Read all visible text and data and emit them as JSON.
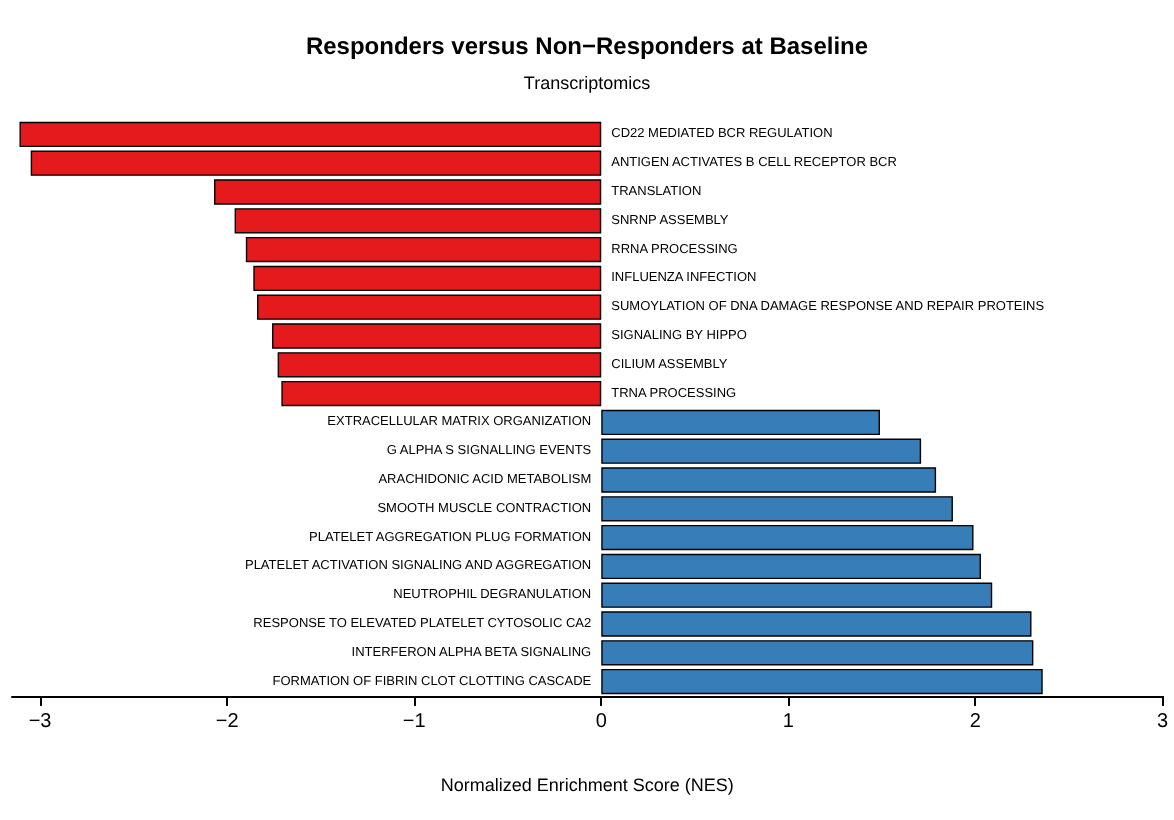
{
  "chart_data": {
    "type": "bar",
    "orientation": "horizontal",
    "title": "Responders versus Non−Responders at Baseline",
    "subtitle": "Transcriptomics",
    "xlabel": "Normalized Enrichment Score (NES)",
    "categories": [
      "CD22 MEDIATED BCR REGULATION",
      "ANTIGEN ACTIVATES B CELL RECEPTOR BCR",
      "TRANSLATION",
      "SNRNP ASSEMBLY",
      "RRNA PROCESSING",
      "INFLUENZA INFECTION",
      "SUMOYLATION OF DNA DAMAGE RESPONSE AND REPAIR PROTEINS",
      "SIGNALING BY HIPPO",
      "CILIUM ASSEMBLY",
      "TRNA PROCESSING",
      "EXTRACELLULAR MATRIX ORGANIZATION",
      "G ALPHA S SIGNALLING EVENTS",
      "ARACHIDONIC ACID METABOLISM",
      "SMOOTH MUSCLE CONTRACTION",
      "PLATELET AGGREGATION PLUG FORMATION",
      "PLATELET ACTIVATION SIGNALING AND AGGREGATION",
      "NEUTROPHIL DEGRANULATION",
      "RESPONSE TO ELEVATED PLATELET CYTOSOLIC CA2",
      "INTERFERON ALPHA BETA SIGNALING",
      "FORMATION OF FIBRIN CLOT CLOTTING CASCADE"
    ],
    "values": [
      -3.11,
      -3.05,
      -2.07,
      -1.96,
      -1.9,
      -1.86,
      -1.84,
      -1.76,
      -1.73,
      -1.71,
      1.49,
      1.71,
      1.79,
      1.88,
      1.99,
      2.03,
      2.09,
      2.3,
      2.31,
      2.36
    ],
    "colors": [
      "#e41a1c",
      "#e41a1c",
      "#e41a1c",
      "#e41a1c",
      "#e41a1c",
      "#e41a1c",
      "#e41a1c",
      "#e41a1c",
      "#e41a1c",
      "#e41a1c",
      "#377eb8",
      "#377eb8",
      "#377eb8",
      "#377eb8",
      "#377eb8",
      "#377eb8",
      "#377eb8",
      "#377eb8",
      "#377eb8",
      "#377eb8"
    ],
    "xlim": [
      -3.15,
      3
    ],
    "xticks": [
      -3,
      -2,
      -1,
      0,
      1,
      2,
      3
    ],
    "grid": false
  }
}
